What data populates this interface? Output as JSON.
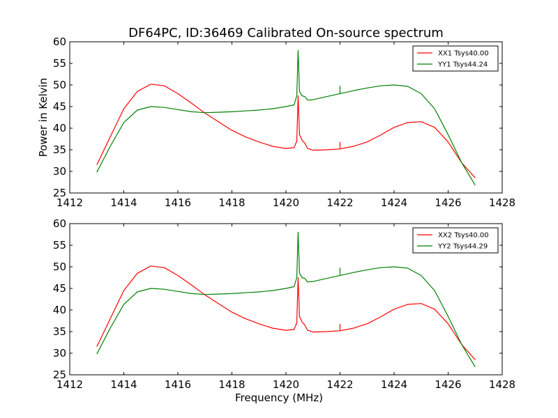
{
  "figure": {
    "title": "DF64PC, ID:36469 Calibrated On-source spectrum"
  },
  "chart_data": [
    {
      "type": "line",
      "title": "DF64PC, ID:36469 Calibrated On-source spectrum",
      "xlabel": "",
      "ylabel": "Power in Kelvin",
      "xlim": [
        1412,
        1428
      ],
      "ylim": [
        25,
        60
      ],
      "xticks": [
        1412,
        1414,
        1416,
        1418,
        1420,
        1422,
        1424,
        1426,
        1428
      ],
      "yticks": [
        25,
        30,
        35,
        40,
        45,
        50,
        55,
        60
      ],
      "legend": "top-right",
      "series": [
        {
          "name": "XX1 Tsys40.00",
          "color": "#ff0000",
          "x": [
            1413,
            1413.5,
            1414,
            1414.5,
            1415,
            1415.5,
            1416,
            1416.5,
            1417,
            1417.5,
            1418,
            1418.5,
            1419,
            1419.5,
            1420,
            1420.3,
            1420.4,
            1420.45,
            1420.5,
            1420.6,
            1420.7,
            1420.8,
            1421,
            1421.5,
            1422,
            1422.5,
            1423,
            1423.5,
            1424,
            1424.5,
            1425,
            1425.5,
            1426,
            1426.5,
            1427
          ],
          "y": [
            31.5,
            38,
            44.5,
            48.5,
            50.2,
            49.8,
            48,
            45.8,
            43.5,
            41.5,
            39.5,
            38,
            36.8,
            35.8,
            35.3,
            35.5,
            37,
            47.5,
            38.5,
            37.2,
            36.5,
            35.3,
            34.9,
            35,
            35.2,
            35.8,
            36.8,
            38.4,
            40.2,
            41.3,
            41.5,
            40.2,
            36.8,
            32,
            28.5
          ],
          "spikes": [
            {
              "x": 1422,
              "top": 36.8
            }
          ]
        },
        {
          "name": "YY1 Tsys44.24",
          "color": "#008000",
          "x": [
            1413,
            1413.5,
            1414,
            1414.5,
            1415,
            1415.5,
            1416,
            1416.5,
            1417,
            1417.5,
            1418,
            1418.5,
            1419,
            1419.5,
            1420,
            1420.3,
            1420.4,
            1420.45,
            1420.5,
            1420.6,
            1420.7,
            1420.8,
            1421,
            1421.5,
            1422,
            1422.5,
            1423,
            1423.5,
            1424,
            1424.5,
            1425,
            1425.5,
            1426,
            1426.5,
            1427
          ],
          "y": [
            29.8,
            35.8,
            41.3,
            44.2,
            45,
            44.8,
            44.3,
            43.8,
            43.6,
            43.7,
            43.8,
            44,
            44.2,
            44.5,
            45,
            45.4,
            47.5,
            58,
            48.5,
            47.5,
            47.3,
            46.5,
            46.6,
            47.3,
            48,
            48.7,
            49.3,
            49.8,
            50,
            49.7,
            48,
            44.5,
            38.5,
            32,
            26.8
          ],
          "spikes": [
            {
              "x": 1422,
              "top": 49.8
            }
          ]
        }
      ]
    },
    {
      "type": "line",
      "title": "",
      "xlabel": "Frequency (MHz)",
      "ylabel": "",
      "xlim": [
        1412,
        1428
      ],
      "ylim": [
        25,
        60
      ],
      "xticks": [
        1412,
        1414,
        1416,
        1418,
        1420,
        1422,
        1424,
        1426,
        1428
      ],
      "yticks": [
        25,
        30,
        35,
        40,
        45,
        50,
        55,
        60
      ],
      "legend": "top-right",
      "series": [
        {
          "name": "XX2 Tsys40.00",
          "color": "#ff0000",
          "x": [
            1413,
            1413.5,
            1414,
            1414.5,
            1415,
            1415.5,
            1416,
            1416.5,
            1417,
            1417.5,
            1418,
            1418.5,
            1419,
            1419.5,
            1420,
            1420.3,
            1420.4,
            1420.45,
            1420.5,
            1420.6,
            1420.7,
            1420.8,
            1421,
            1421.5,
            1422,
            1422.5,
            1423,
            1423.5,
            1424,
            1424.5,
            1425,
            1425.5,
            1426,
            1426.5,
            1427
          ],
          "y": [
            31.5,
            38,
            44.5,
            48.5,
            50.2,
            49.8,
            48,
            45.8,
            43.5,
            41.5,
            39.5,
            38,
            36.8,
            35.8,
            35.3,
            35.5,
            37,
            47.5,
            38.5,
            37.2,
            36.5,
            35.3,
            34.9,
            35,
            35.2,
            35.8,
            36.8,
            38.4,
            40.2,
            41.3,
            41.5,
            40.2,
            36.8,
            32,
            28.5
          ],
          "spikes": [
            {
              "x": 1422,
              "top": 36.8
            }
          ]
        },
        {
          "name": "YY2 Tsys44.29",
          "color": "#008000",
          "x": [
            1413,
            1413.5,
            1414,
            1414.5,
            1415,
            1415.5,
            1416,
            1416.5,
            1417,
            1417.5,
            1418,
            1418.5,
            1419,
            1419.5,
            1420,
            1420.3,
            1420.4,
            1420.45,
            1420.5,
            1420.6,
            1420.7,
            1420.8,
            1421,
            1421.5,
            1422,
            1422.5,
            1423,
            1423.5,
            1424,
            1424.5,
            1425,
            1425.5,
            1426,
            1426.5,
            1427
          ],
          "y": [
            29.8,
            35.8,
            41.3,
            44.2,
            45,
            44.8,
            44.3,
            43.8,
            43.6,
            43.7,
            43.8,
            44,
            44.2,
            44.5,
            45,
            45.4,
            47.5,
            58,
            48.5,
            47.5,
            47.3,
            46.5,
            46.6,
            47.3,
            48,
            48.7,
            49.3,
            49.8,
            50,
            49.7,
            48,
            44.5,
            38.5,
            32,
            26.8
          ],
          "spikes": [
            {
              "x": 1422,
              "top": 49.8
            }
          ]
        }
      ]
    }
  ]
}
